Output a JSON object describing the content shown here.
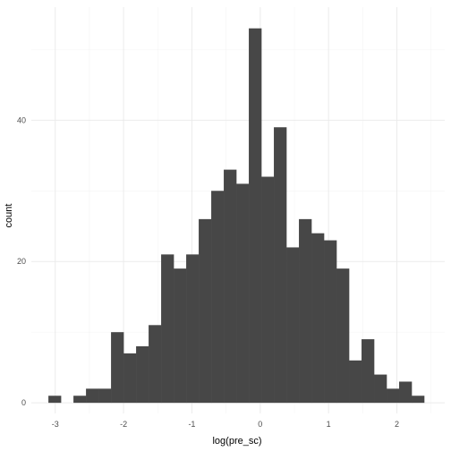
{
  "chart_data": {
    "type": "bar",
    "subtype": "histogram",
    "title": "",
    "xlabel": "log(pre_sc)",
    "ylabel": "count",
    "bin_width": 0.1833,
    "bins_start": -3.1,
    "values": [
      1,
      0,
      1,
      2,
      2,
      10,
      7,
      8,
      11,
      21,
      19,
      21,
      26,
      30,
      33,
      31,
      53,
      32,
      39,
      22,
      26,
      24,
      23,
      19,
      6,
      9,
      4,
      2,
      3,
      1
    ],
    "xlim": [
      -3.35,
      2.7
    ],
    "ylim": [
      -1.5,
      56
    ],
    "x_ticks": [
      -3,
      -2,
      -1,
      0,
      1,
      2
    ],
    "x_tick_labels": [
      "-3",
      "-2",
      "-1",
      "0",
      "1",
      "2"
    ],
    "y_ticks": [
      0,
      20,
      40
    ],
    "y_tick_labels": [
      "0",
      "20",
      "40"
    ],
    "bar_color": "#474747",
    "grid": true,
    "legend": "none"
  }
}
